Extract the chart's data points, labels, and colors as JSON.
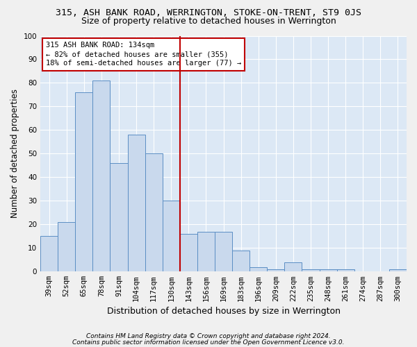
{
  "title1": "315, ASH BANK ROAD, WERRINGTON, STOKE-ON-TRENT, ST9 0JS",
  "title2": "Size of property relative to detached houses in Werrington",
  "xlabel": "Distribution of detached houses by size in Werrington",
  "ylabel": "Number of detached properties",
  "categories": [
    "39sqm",
    "52sqm",
    "65sqm",
    "78sqm",
    "91sqm",
    "104sqm",
    "117sqm",
    "130sqm",
    "143sqm",
    "156sqm",
    "169sqm",
    "183sqm",
    "196sqm",
    "209sqm",
    "222sqm",
    "235sqm",
    "248sqm",
    "261sqm",
    "274sqm",
    "287sqm",
    "300sqm"
  ],
  "values": [
    15,
    21,
    76,
    81,
    46,
    58,
    50,
    30,
    16,
    17,
    17,
    9,
    2,
    1,
    4,
    1,
    1,
    1,
    0,
    0,
    1
  ],
  "bar_color": "#c9d9ed",
  "bar_edge_color": "#5b8ec4",
  "ylim": [
    0,
    100
  ],
  "yticks": [
    0,
    10,
    20,
    30,
    40,
    50,
    60,
    70,
    80,
    90,
    100
  ],
  "vline_x": 7.5,
  "vline_color": "#c00000",
  "annotation_line1": "315 ASH BANK ROAD: 134sqm",
  "annotation_line2": "← 82% of detached houses are smaller (355)",
  "annotation_line3": "18% of semi-detached houses are larger (77) →",
  "annotation_box_color": "#c00000",
  "footnote1": "Contains HM Land Registry data © Crown copyright and database right 2024.",
  "footnote2": "Contains public sector information licensed under the Open Government Licence v3.0.",
  "fig_background": "#f0f0f0",
  "plot_background": "#dce8f5",
  "grid_color": "#ffffff",
  "title1_fontsize": 9.5,
  "title2_fontsize": 9,
  "xlabel_fontsize": 9,
  "ylabel_fontsize": 8.5,
  "tick_fontsize": 7.5,
  "annotation_fontsize": 7.5,
  "footnote_fontsize": 6.5
}
